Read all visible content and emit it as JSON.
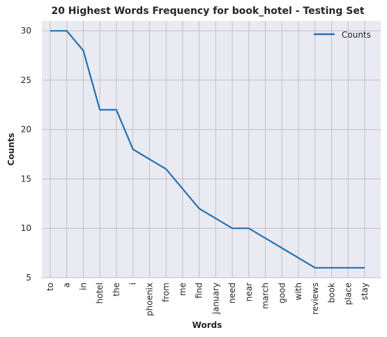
{
  "chart_data": {
    "type": "line",
    "title": "20 Highest Words Frequency for book_hotel - Testing Set",
    "xlabel": "Words",
    "ylabel": "Counts",
    "categories": [
      "to",
      "a",
      "in",
      "hotel",
      "the",
      "i",
      "phoenix",
      "from",
      "me",
      "find",
      "january",
      "need",
      "near",
      "march",
      "good",
      "with",
      "reviews",
      "book",
      "place",
      "stay"
    ],
    "series": [
      {
        "name": "Counts",
        "values": [
          30,
          30,
          28,
          22,
          22,
          18,
          17,
          16,
          14,
          12,
          11,
          10,
          10,
          9,
          8,
          7,
          6,
          6,
          6,
          6
        ]
      }
    ],
    "ylim": [
      5,
      31
    ],
    "yticks": [
      5,
      10,
      15,
      20,
      25,
      30
    ],
    "grid": true,
    "legend": "top-right",
    "colors": {
      "line": "#2171b5",
      "plot_bg": "#eaeaf2",
      "grid": "#c0c0c0"
    }
  }
}
